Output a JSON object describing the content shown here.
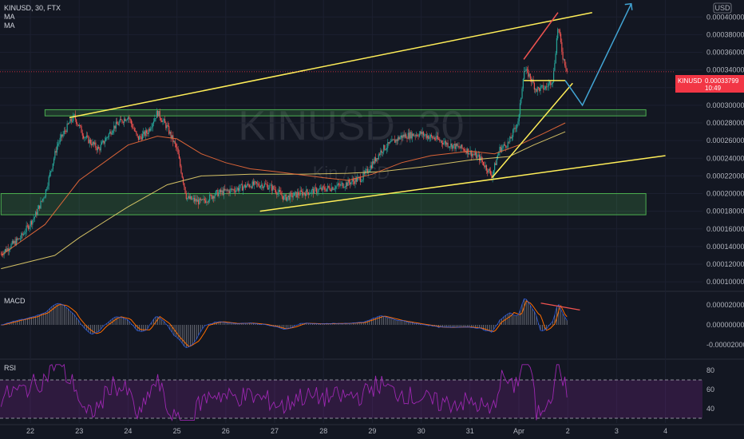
{
  "header": {
    "symbol_line": "KINUSD, 30, FTX",
    "ma1": "MA",
    "ma2": "MA",
    "currency_badge": "USD"
  },
  "watermark": {
    "big": "KINUSD, 30",
    "small": "Kin / USD"
  },
  "current_price": {
    "symbol": "KINUSD",
    "value": "0.00033799",
    "countdown": "10:49"
  },
  "colors": {
    "background": "#131722",
    "candle_up": "#26a69a",
    "candle_down": "#ef5350",
    "ma_fast": "#ef6c3a",
    "ma_slow": "#e8d36b",
    "trendline": "#ffee58",
    "zone": "#4caf50",
    "projection": "#42a5d5",
    "rsi": "#9c27b0",
    "macd": "#2962ff",
    "signal": "#ff6d00",
    "price_tag": "#f23645"
  },
  "chart_data": [
    {
      "type": "candlestick",
      "name": "price",
      "ylim": [
        9e-05,
        0.00042
      ],
      "y_ticks": [
        "0.00040000",
        "0.00038000",
        "0.00036000",
        "0.00034000",
        "0.00032000",
        "0.00030000",
        "0.00028000",
        "0.00026000",
        "0.00024000",
        "0.00022000",
        "0.00020000",
        "0.00018000",
        "0.00016000",
        "0.00014000",
        "0.00012000",
        "0.00010000"
      ],
      "x_ticks": [
        "22",
        "23",
        "24",
        "25",
        "26",
        "27",
        "28",
        "29",
        "30",
        "31",
        "Apr",
        "2",
        "3",
        "4"
      ],
      "x_tick_days": [
        0,
        1,
        2,
        3,
        4,
        5,
        6,
        7,
        8,
        9,
        10,
        11,
        12,
        13
      ],
      "price_path": [
        [
          -0.6,
          0.000132
        ],
        [
          -0.2,
          0.00015
        ],
        [
          0.1,
          0.000175
        ],
        [
          0.3,
          0.0002
        ],
        [
          0.55,
          0.000255
        ],
        [
          0.8,
          0.00028
        ],
        [
          0.9,
          0.000287
        ],
        [
          1.1,
          0.000265
        ],
        [
          1.4,
          0.00025
        ],
        [
          1.7,
          0.000275
        ],
        [
          2.0,
          0.000288
        ],
        [
          2.2,
          0.000262
        ],
        [
          2.4,
          0.00027
        ],
        [
          2.6,
          0.000292
        ],
        [
          2.8,
          0.000275
        ],
        [
          3.0,
          0.00025
        ],
        [
          3.2,
          0.000195
        ],
        [
          3.5,
          0.00019
        ],
        [
          3.8,
          0.0002
        ],
        [
          4.2,
          0.000205
        ],
        [
          4.5,
          0.00021
        ],
        [
          4.8,
          0.00021
        ],
        [
          5.0,
          0.000205
        ],
        [
          5.2,
          0.000195
        ],
        [
          5.5,
          0.0002
        ],
        [
          6.0,
          0.000205
        ],
        [
          6.4,
          0.00021
        ],
        [
          6.8,
          0.000218
        ],
        [
          7.2,
          0.00025
        ],
        [
          7.6,
          0.000265
        ],
        [
          8.0,
          0.000268
        ],
        [
          8.3,
          0.000262
        ],
        [
          8.6,
          0.000255
        ],
        [
          8.9,
          0.00025
        ],
        [
          9.2,
          0.00024
        ],
        [
          9.45,
          0.00022
        ],
        [
          9.6,
          0.00025
        ],
        [
          9.8,
          0.000258
        ],
        [
          10.0,
          0.000285
        ],
        [
          10.1,
          0.00034
        ],
        [
          10.2,
          0.000335
        ],
        [
          10.35,
          0.000318
        ],
        [
          10.55,
          0.00032
        ],
        [
          10.7,
          0.00033
        ],
        [
          10.8,
          0.00039
        ],
        [
          10.9,
          0.000355
        ],
        [
          11.0,
          0.000338
        ]
      ],
      "ma_fast": [
        [
          -0.6,
          0.00013
        ],
        [
          0.3,
          0.000165
        ],
        [
          1.0,
          0.000215
        ],
        [
          2.0,
          0.000255
        ],
        [
          2.6,
          0.000265
        ],
        [
          3.0,
          0.000262
        ],
        [
          3.5,
          0.000245
        ],
        [
          4.0,
          0.000235
        ],
        [
          4.5,
          0.000228
        ],
        [
          5.0,
          0.000225
        ],
        [
          6.0,
          0.000218
        ],
        [
          6.5,
          0.000215
        ],
        [
          7.0,
          0.000222
        ],
        [
          7.6,
          0.000235
        ],
        [
          8.2,
          0.000243
        ],
        [
          9.0,
          0.000248
        ],
        [
          9.5,
          0.000245
        ],
        [
          10.0,
          0.000255
        ],
        [
          10.5,
          0.000268
        ],
        [
          10.95,
          0.00028
        ]
      ],
      "ma_slow": [
        [
          -0.6,
          0.000115
        ],
        [
          0.5,
          0.00013
        ],
        [
          1.0,
          0.00015
        ],
        [
          2.0,
          0.000185
        ],
        [
          2.8,
          0.00021
        ],
        [
          3.5,
          0.00022
        ],
        [
          4.5,
          0.000222
        ],
        [
          5.5,
          0.000222
        ],
        [
          6.5,
          0.000223
        ],
        [
          7.2,
          0.000225
        ],
        [
          8.0,
          0.00023
        ],
        [
          9.0,
          0.000238
        ],
        [
          9.8,
          0.000242
        ],
        [
          10.3,
          0.000255
        ],
        [
          10.95,
          0.00027
        ]
      ],
      "annotations": {
        "trend_upper": [
          [
            0.8,
            0.000286
          ],
          [
            11.5,
            0.000405
          ]
        ],
        "trend_lower_main": [
          [
            4.7,
            0.00018
          ],
          [
            13.0,
            0.000243
          ]
        ],
        "trend_support_steep": [
          [
            9.45,
            0.000218
          ],
          [
            11.1,
            0.000325
          ]
        ],
        "horizontal_neckline": [
          [
            10.1,
            0.000328
          ],
          [
            10.95,
            0.000328
          ]
        ],
        "red_rise": [
          [
            10.1,
            0.000352
          ],
          [
            10.8,
            0.000405
          ]
        ],
        "zone_upper": [
          [
            0.3,
            0.000288
          ],
          [
            12.6,
            0.000295
          ]
        ],
        "zone_lower": [
          [
            -0.6,
            0.000176
          ],
          [
            12.6,
            0.0002
          ]
        ],
        "projection_path": [
          [
            10.95,
            0.000328
          ],
          [
            11.3,
            0.0003
          ],
          [
            12.3,
            0.000415
          ]
        ],
        "current_price_line": 0.00033799
      }
    },
    {
      "type": "histogram",
      "name": "MACD",
      "y_ticks": [
        "0.00002000",
        "0.00000000",
        "-0.00002000"
      ],
      "ylim": [
        -2.5e-05,
        2.5e-05
      ]
    },
    {
      "type": "line",
      "name": "RSI",
      "y_ticks": [
        "80",
        "60",
        "40"
      ],
      "ylim": [
        25,
        90
      ],
      "bands": [
        70,
        30
      ]
    }
  ]
}
